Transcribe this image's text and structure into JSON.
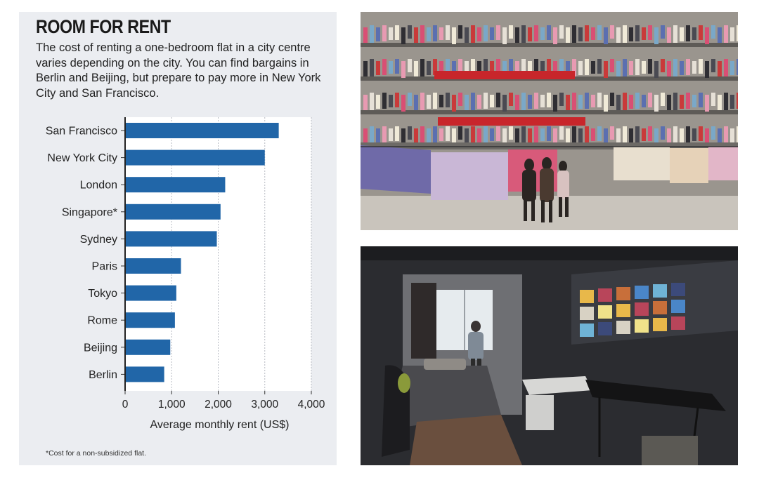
{
  "chart_data": {
    "type": "bar",
    "orientation": "horizontal",
    "title": "ROOM FOR RENT",
    "subtitle": "The cost of renting a one-bedroom flat in a city centre varies depending on the city. You can find bargains in Berlin and Beijing, but prepare to pay more in New York City and San Francisco.",
    "categories": [
      "San Francisco",
      "New York City",
      "London",
      "Singapore*",
      "Sydney",
      "Paris",
      "Tokyo",
      "Rome",
      "Beijing",
      "Berlin"
    ],
    "values": [
      3300,
      3000,
      2150,
      2050,
      1970,
      1200,
      1100,
      1070,
      970,
      840
    ],
    "xlabel": "Average monthly rent (US$)",
    "ylabel": "",
    "xlim": [
      0,
      4000
    ],
    "xticks": [
      "0",
      "1,000",
      "2,000",
      "3,000",
      "4,000"
    ],
    "grid": true,
    "bar_color": "#2166a8",
    "footnote": "*Cost for a non-subsidized flat."
  }
}
